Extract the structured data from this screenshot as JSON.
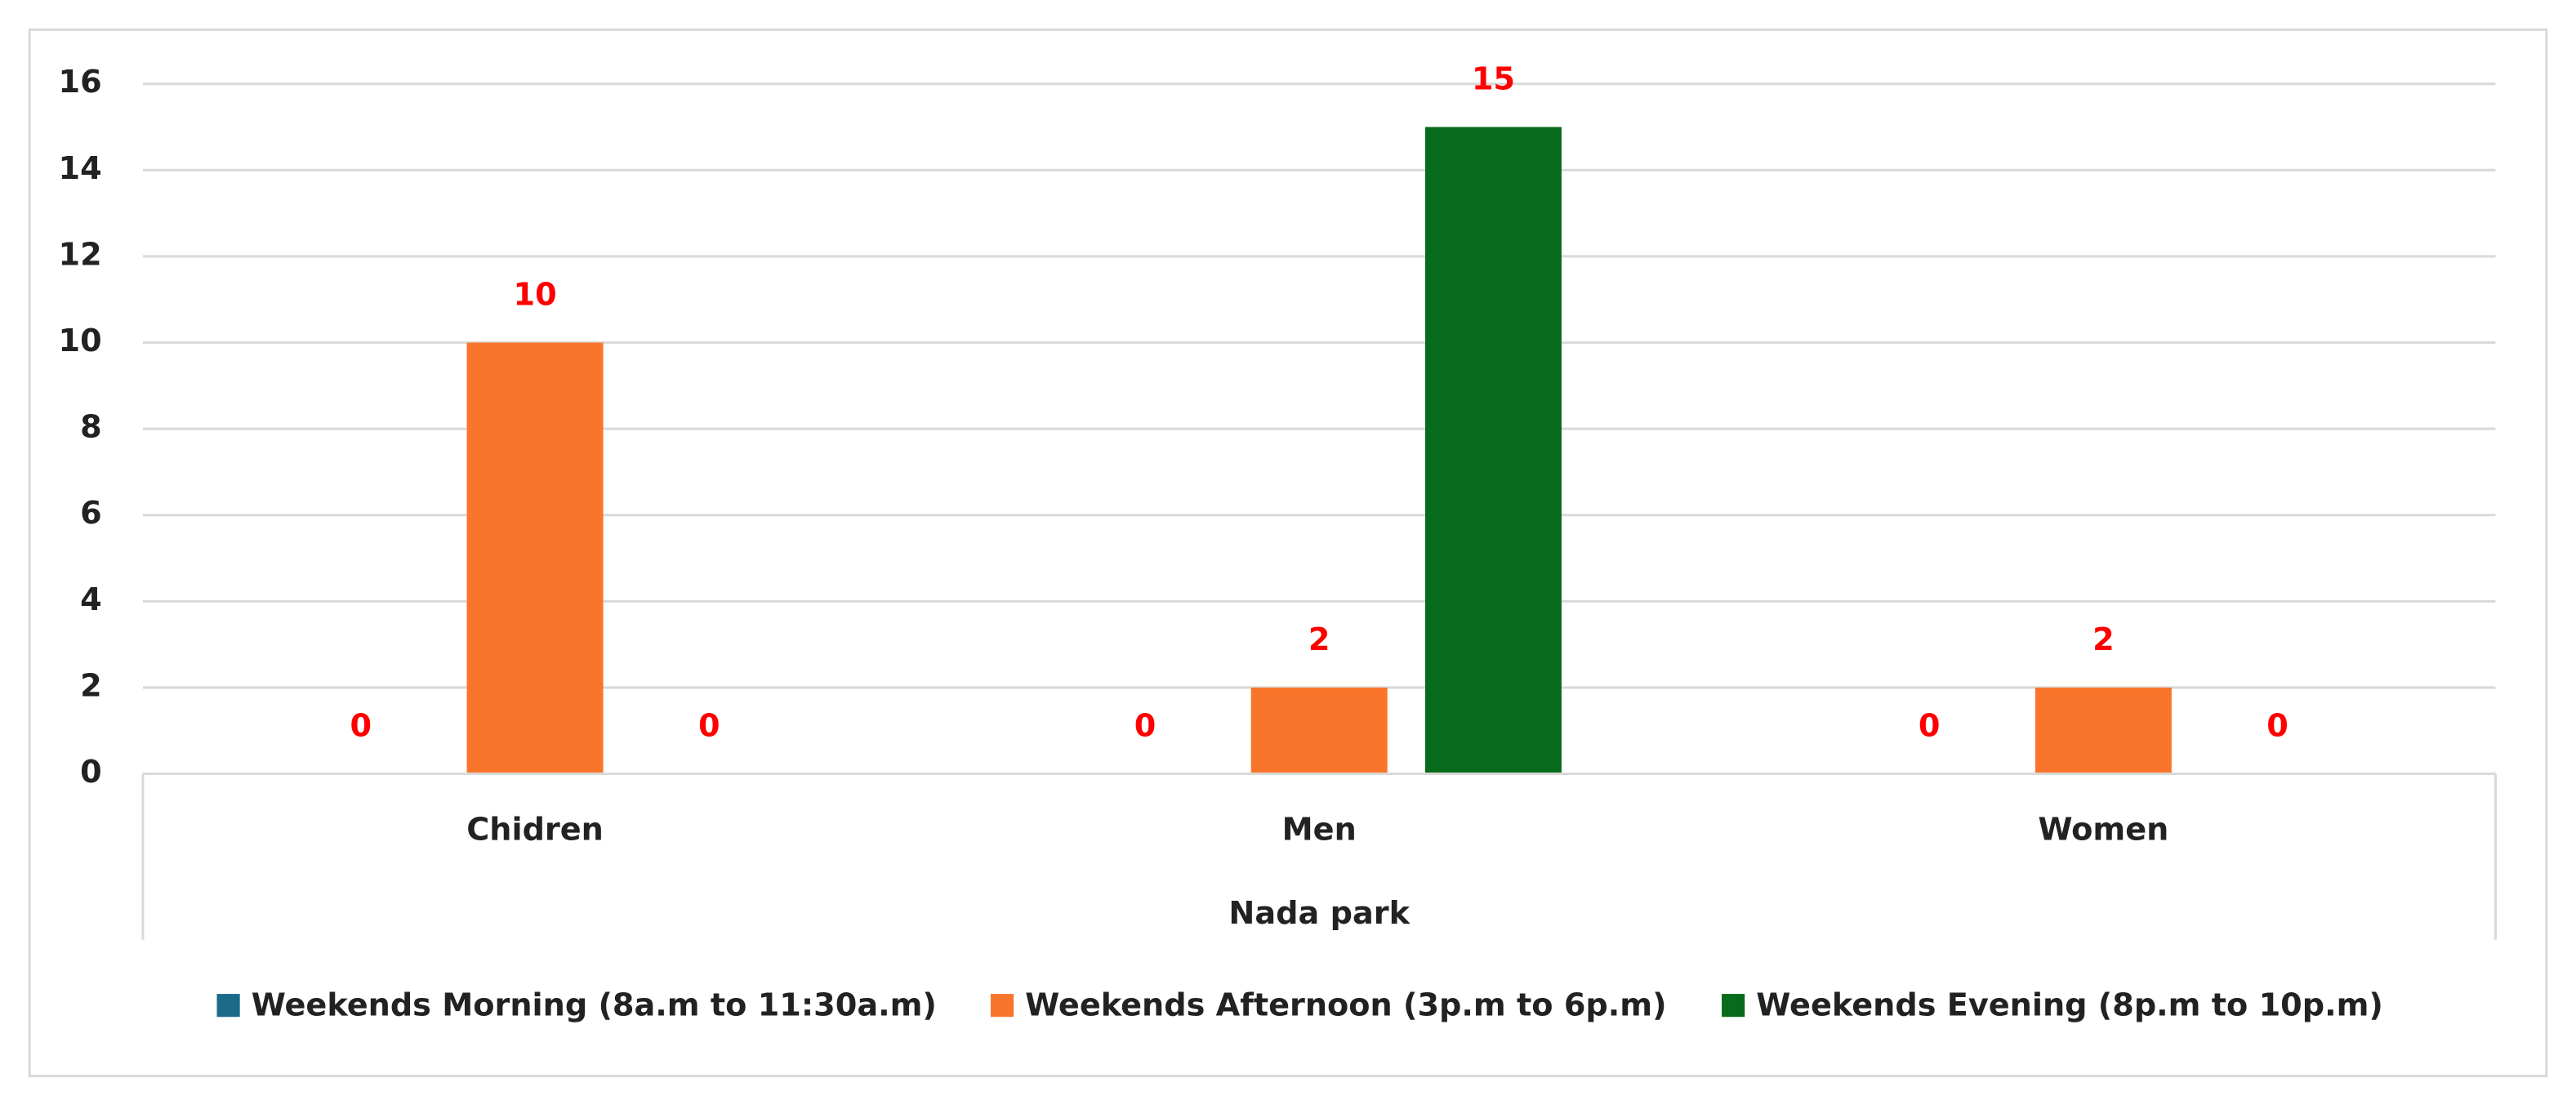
{
  "chart_data": {
    "type": "bar",
    "x_label": "Nada park",
    "categories": [
      "Chidren",
      "Men",
      "Women"
    ],
    "series": [
      {
        "name": "Weekends Morning (8a.m to 11:30a.m)",
        "color": "#1b6a8a",
        "values": [
          0,
          0,
          0
        ]
      },
      {
        "name": "Weekends Afternoon (3p.m to 6p.m)",
        "color": "#f9752b",
        "values": [
          10,
          2,
          2
        ]
      },
      {
        "name": "Weekends Evening (8p.m to 10p.m)",
        "color": "#066b1a",
        "values": [
          0,
          15,
          0
        ]
      }
    ],
    "ylim": [
      0,
      16
    ],
    "yticks": [
      0,
      2,
      4,
      6,
      8,
      10,
      12,
      14,
      16
    ],
    "grid": true,
    "label_color": "#ff0000",
    "legend": "bottom"
  }
}
